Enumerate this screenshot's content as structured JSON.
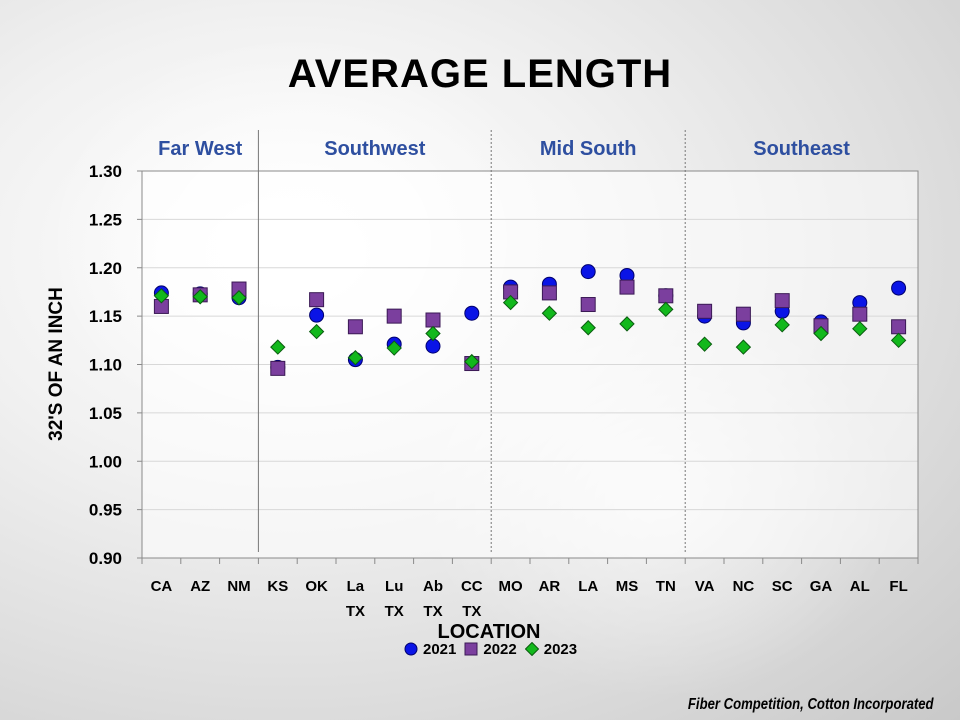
{
  "title": "AVERAGE LENGTH",
  "footer": "Fiber Competition, Cotton Incorporated",
  "colors": {
    "series_2021": "#0a14e6",
    "series_2022": "#7b3f9e",
    "series_2023": "#12b81c",
    "region_label": "#2e4fa0"
  },
  "chart_data": {
    "type": "scatter",
    "title": "AVERAGE LENGTH",
    "xlabel": "LOCATION",
    "ylabel": "32'S OF AN INCH",
    "ylim": [
      0.9,
      1.3
    ],
    "yticks": [
      "0.90",
      "0.95",
      "1.00",
      "1.05",
      "1.10",
      "1.15",
      "1.20",
      "1.25",
      "1.30"
    ],
    "grid": true,
    "categories": [
      {
        "line1": "CA",
        "line2": ""
      },
      {
        "line1": "AZ",
        "line2": ""
      },
      {
        "line1": "NM",
        "line2": ""
      },
      {
        "line1": "KS",
        "line2": ""
      },
      {
        "line1": "OK",
        "line2": ""
      },
      {
        "line1": "La",
        "line2": "TX"
      },
      {
        "line1": "Lu",
        "line2": "TX"
      },
      {
        "line1": "Ab",
        "line2": "TX"
      },
      {
        "line1": "CC",
        "line2": "TX"
      },
      {
        "line1": "MO",
        "line2": ""
      },
      {
        "line1": "AR",
        "line2": ""
      },
      {
        "line1": "LA",
        "line2": ""
      },
      {
        "line1": "MS",
        "line2": ""
      },
      {
        "line1": "TN",
        "line2": ""
      },
      {
        "line1": "VA",
        "line2": ""
      },
      {
        "line1": "NC",
        "line2": ""
      },
      {
        "line1": "SC",
        "line2": ""
      },
      {
        "line1": "GA",
        "line2": ""
      },
      {
        "line1": "AL",
        "line2": ""
      },
      {
        "line1": "FL",
        "line2": ""
      }
    ],
    "regions": [
      {
        "name": "Far West",
        "start": 0,
        "end": 2
      },
      {
        "name": "Southwest",
        "start": 3,
        "end": 8
      },
      {
        "name": "Mid South",
        "start": 9,
        "end": 13
      },
      {
        "name": "Southeast",
        "start": 14,
        "end": 19
      }
    ],
    "series": [
      {
        "name": "2021",
        "marker": "circle",
        "values": [
          1.174,
          1.173,
          1.169,
          1.097,
          1.151,
          1.105,
          1.121,
          1.119,
          1.153,
          1.18,
          1.183,
          1.196,
          1.192,
          1.171,
          1.15,
          1.143,
          1.155,
          1.144,
          1.164,
          1.179
        ]
      },
      {
        "name": "2022",
        "marker": "square",
        "values": [
          1.16,
          1.172,
          1.178,
          1.096,
          1.167,
          1.139,
          1.15,
          1.146,
          1.101,
          1.175,
          1.174,
          1.162,
          1.18,
          1.171,
          1.155,
          1.152,
          1.166,
          1.14,
          1.152,
          1.139
        ]
      },
      {
        "name": "2023",
        "marker": "diamond",
        "values": [
          1.171,
          1.17,
          1.169,
          1.118,
          1.134,
          1.107,
          1.117,
          1.132,
          1.103,
          1.164,
          1.153,
          1.138,
          1.142,
          1.157,
          1.121,
          1.118,
          1.141,
          1.132,
          1.137,
          1.125
        ]
      }
    ]
  }
}
